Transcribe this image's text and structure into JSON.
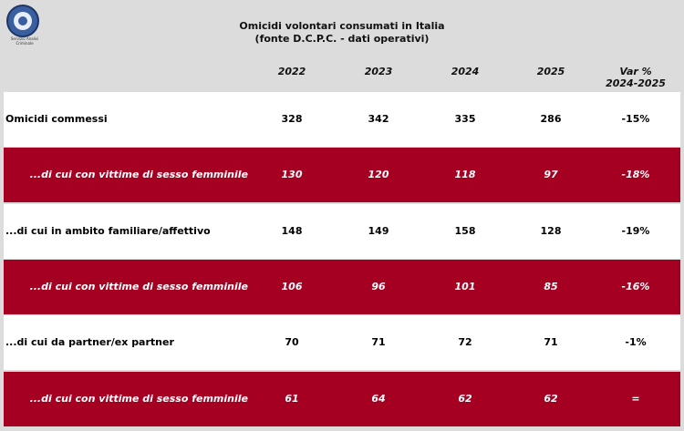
{
  "logo": {
    "caption": "Servizio Analisi Criminale"
  },
  "header": {
    "title": "Omicidi volontari consumati in Italia",
    "subtitle": "(fonte D.C.P.C. - dati operativi)"
  },
  "table": {
    "columns": [
      "2022",
      "2023",
      "2024",
      "2025",
      "Var %\n2024-2025"
    ],
    "rows": [
      {
        "label": "Omicidi commessi",
        "cells": [
          "328",
          "342",
          "335",
          "286",
          "-15%"
        ]
      },
      {
        "label": "...di cui con vittime di sesso femminile",
        "cells": [
          "130",
          "120",
          "118",
          "97",
          "-18%"
        ]
      },
      {
        "label": "...di cui in ambito familiare/affettivo",
        "cells": [
          "148",
          "149",
          "158",
          "128",
          "-19%"
        ]
      },
      {
        "label": "...di cui con vittime di sesso femminile",
        "cells": [
          "106",
          "96",
          "101",
          "85",
          "-16%"
        ]
      },
      {
        "label": "...di cui da partner/ex partner",
        "cells": [
          "70",
          "71",
          "72",
          "71",
          "-1%"
        ]
      },
      {
        "label": "...di cui con vittime di sesso femminile",
        "cells": [
          "61",
          "64",
          "62",
          "62",
          "="
        ]
      }
    ]
  }
}
